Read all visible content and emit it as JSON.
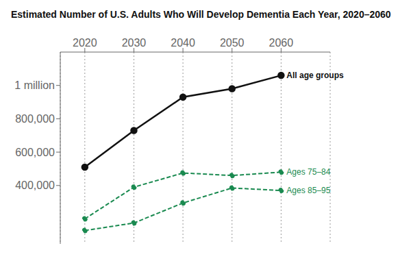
{
  "chart_data": {
    "type": "line",
    "title": "Estimated Number of U.S. Adults Who Will Develop Dementia Each Year, 2020–2060",
    "x": [
      2020,
      2030,
      2040,
      2050,
      2060
    ],
    "series": [
      {
        "name": "All age groups",
        "color": "#111111",
        "values": [
          510000,
          730000,
          930000,
          980000,
          1060000
        ],
        "line_style": "solid",
        "marker": "o"
      },
      {
        "name": "Ages 75–84",
        "color": "#1a8a50",
        "values": [
          200000,
          390000,
          475000,
          460000,
          480000
        ],
        "line_style": "dashed",
        "marker": "o"
      },
      {
        "name": "Ages 85–95",
        "color": "#1a8a50",
        "values": [
          130000,
          175000,
          295000,
          385000,
          370000
        ],
        "line_style": "dashed",
        "marker": "o"
      }
    ],
    "xlim": [
      2015,
      2070
    ],
    "xticks": [
      2020,
      2030,
      2040,
      2050,
      2060
    ],
    "ylim": [
      50000,
      1200000
    ],
    "yticks": [
      {
        "value": 400000,
        "label": "400,000"
      },
      {
        "value": 600000,
        "label": "600,000"
      },
      {
        "value": 800000,
        "label": "800,000"
      },
      {
        "value": 1000000,
        "label": "1 million"
      }
    ],
    "grid": "x"
  }
}
